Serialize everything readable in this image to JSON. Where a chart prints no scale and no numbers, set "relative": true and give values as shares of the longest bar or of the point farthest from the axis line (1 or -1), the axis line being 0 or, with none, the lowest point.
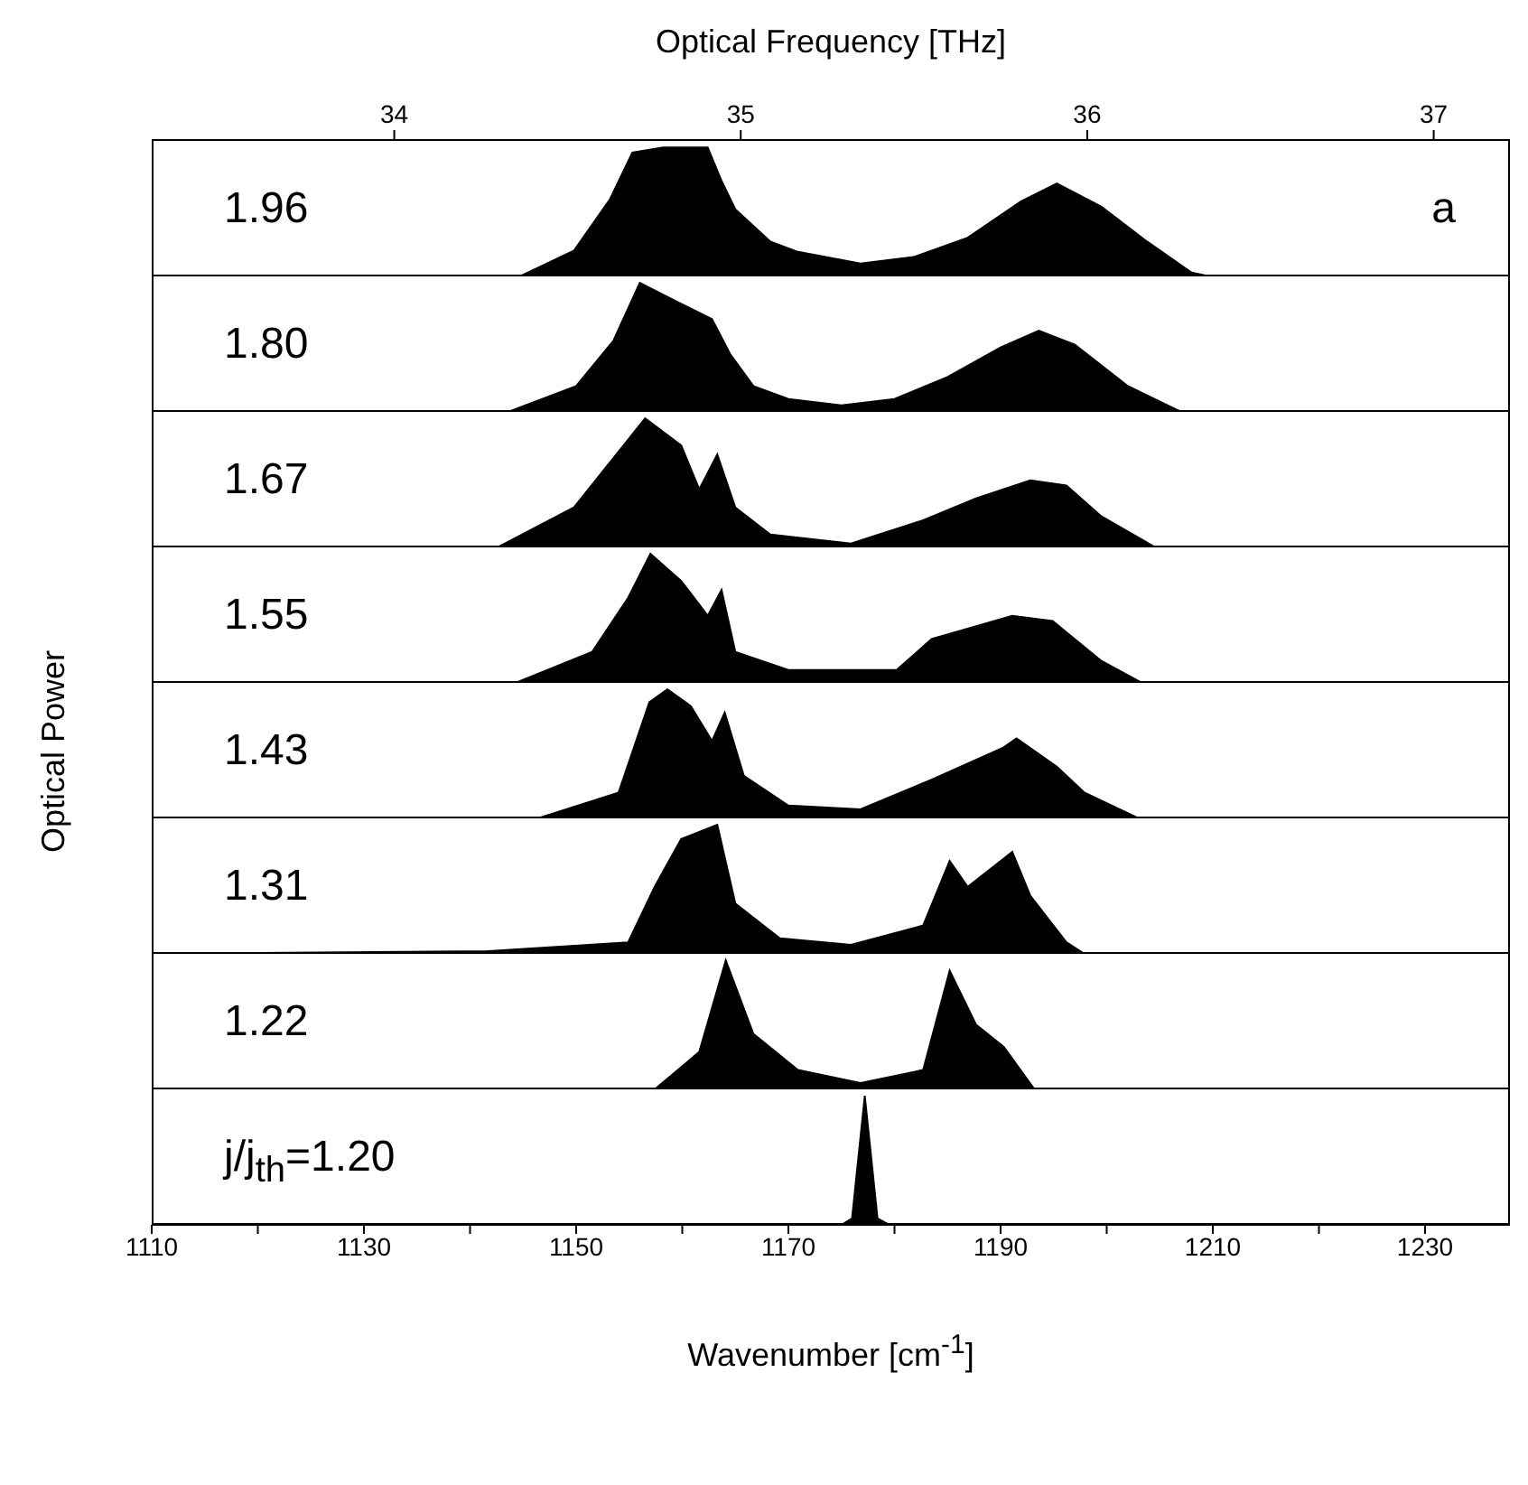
{
  "chart_data": [
    {
      "type": "area",
      "relative": true,
      "x2label": "Optical Frequency [THz]",
      "x2lim": [
        33.3,
        37.22
      ],
      "x2ticks": [
        34,
        35,
        36,
        37
      ],
      "xlim": [
        1110,
        1238
      ],
      "tick_labels": false,
      "color": "#000000",
      "annotations": [
        "1.96",
        "a"
      ],
      "x": [
        1110,
        1144.7,
        1149.8,
        1153.2,
        1155.3,
        1158.2,
        1162.4,
        1163.7,
        1165,
        1168.3,
        1170.9,
        1176.8,
        1181.8,
        1186.9,
        1191.9,
        1195.3,
        1199.5,
        1203.8,
        1208,
        1209.7,
        1238
      ],
      "values": [
        0,
        0,
        0.2,
        0.6,
        0.96,
        1,
        1,
        0.74,
        0.52,
        0.27,
        0.19,
        0.1,
        0.15,
        0.3,
        0.58,
        0.72,
        0.54,
        0.27,
        0.03,
        0,
        0
      ]
    },
    {
      "type": "area",
      "relative": true,
      "xlim": [
        1110,
        1238
      ],
      "tick_labels": false,
      "color": "#000000",
      "annotations": [
        "1.80"
      ],
      "x": [
        1110,
        1143.6,
        1150,
        1153.5,
        1156,
        1159.6,
        1162.8,
        1164.5,
        1166.7,
        1170,
        1175,
        1180,
        1185,
        1190,
        1193.6,
        1197,
        1202,
        1207,
        1238
      ],
      "values": [
        0,
        0,
        0.2,
        0.55,
        1,
        0.85,
        0.72,
        0.45,
        0.2,
        0.1,
        0.05,
        0.1,
        0.27,
        0.5,
        0.63,
        0.52,
        0.2,
        0,
        0
      ]
    },
    {
      "type": "area",
      "relative": true,
      "xlim": [
        1110,
        1238
      ],
      "tick_labels": false,
      "color": "#000000",
      "annotations": [
        "1.67"
      ],
      "x": [
        1110,
        1142.6,
        1149.8,
        1153.2,
        1156.5,
        1159.9,
        1161.6,
        1163.3,
        1165,
        1168.3,
        1175.9,
        1182.7,
        1187.7,
        1192.8,
        1196.2,
        1199.5,
        1204.6,
        1238
      ],
      "values": [
        0,
        0,
        0.31,
        0.66,
        1,
        0.79,
        0.45,
        0.72,
        0.31,
        0.1,
        0.03,
        0.21,
        0.38,
        0.52,
        0.48,
        0.24,
        0,
        0
      ]
    },
    {
      "type": "area",
      "relative": true,
      "xlim": [
        1110,
        1238
      ],
      "tick_labels": false,
      "color": "#000000",
      "annotations": [
        "1.55"
      ],
      "x": [
        1110,
        1144.3,
        1151.5,
        1154.9,
        1157,
        1159.9,
        1162.4,
        1163.7,
        1165,
        1170,
        1180.2,
        1183.5,
        1191.1,
        1194.9,
        1199.5,
        1203.3,
        1238
      ],
      "values": [
        0,
        0,
        0.24,
        0.66,
        1,
        0.79,
        0.52,
        0.72,
        0.24,
        0.1,
        0.1,
        0.34,
        0.52,
        0.48,
        0.17,
        0,
        0
      ]
    },
    {
      "type": "area",
      "relative": true,
      "ylabel": "Optical Power",
      "xlim": [
        1110,
        1238
      ],
      "tick_labels": false,
      "color": "#000000",
      "annotations": [
        "1.43"
      ],
      "x": [
        1110,
        1146.4,
        1154,
        1156.9,
        1158.6,
        1160.8,
        1162.8,
        1164,
        1165.8,
        1170,
        1176.8,
        1183.5,
        1190.3,
        1191.5,
        1195.3,
        1197.9,
        1203,
        1238
      ],
      "values": [
        0,
        0,
        0.2,
        0.9,
        1,
        0.87,
        0.6,
        0.82,
        0.33,
        0.1,
        0.07,
        0.3,
        0.55,
        0.62,
        0.4,
        0.2,
        0,
        0
      ]
    },
    {
      "type": "area",
      "relative": true,
      "xlim": [
        1110,
        1238
      ],
      "tick_labels": false,
      "color": "#000000",
      "annotations": [
        "1.31"
      ],
      "x": [
        1110,
        1141.4,
        1154.9,
        1157.4,
        1159.9,
        1163.3,
        1165,
        1169.2,
        1175.9,
        1182.7,
        1185.2,
        1186.9,
        1191.1,
        1192.8,
        1196.2,
        1197.9,
        1238
      ],
      "values": [
        0,
        0.02,
        0.09,
        0.52,
        0.89,
        1,
        0.39,
        0.12,
        0.07,
        0.22,
        0.72,
        0.52,
        0.79,
        0.45,
        0.09,
        0,
        0
      ]
    },
    {
      "type": "area",
      "relative": true,
      "xlim": [
        1110,
        1238
      ],
      "tick_labels": false,
      "color": "#000000",
      "annotations": [
        "1.22"
      ],
      "x": [
        1110,
        1157.4,
        1161.6,
        1164.1,
        1166.7,
        1170.9,
        1176.8,
        1182.7,
        1185.2,
        1187.7,
        1190.3,
        1193.2,
        1238
      ],
      "values": [
        0,
        0,
        0.29,
        1,
        0.43,
        0.15,
        0.05,
        0.15,
        0.92,
        0.5,
        0.33,
        0,
        0
      ]
    },
    {
      "type": "area",
      "relative": true,
      "xlabel": "Wavenumber [cm$^{-1}$]",
      "xlim": [
        1110,
        1238
      ],
      "xticks": [
        1110,
        {
          "value": 1120,
          "label": null
        },
        1130,
        {
          "value": 1140,
          "label": null
        },
        1150,
        {
          "value": 1160,
          "label": null
        },
        1170,
        {
          "value": 1180,
          "label": null
        },
        1190,
        {
          "value": 1200,
          "label": null
        },
        1210,
        {
          "value": 1220,
          "label": null
        },
        1230
      ],
      "tick_labels": "x",
      "color": "#000000",
      "annotations": [
        "j/j$_{th}$=1.20"
      ],
      "x": [
        1110,
        1175,
        1176,
        1177.2,
        1178.4,
        1179.5,
        1238
      ],
      "values": [
        0,
        0,
        0.05,
        1,
        0.05,
        0,
        0
      ]
    }
  ]
}
